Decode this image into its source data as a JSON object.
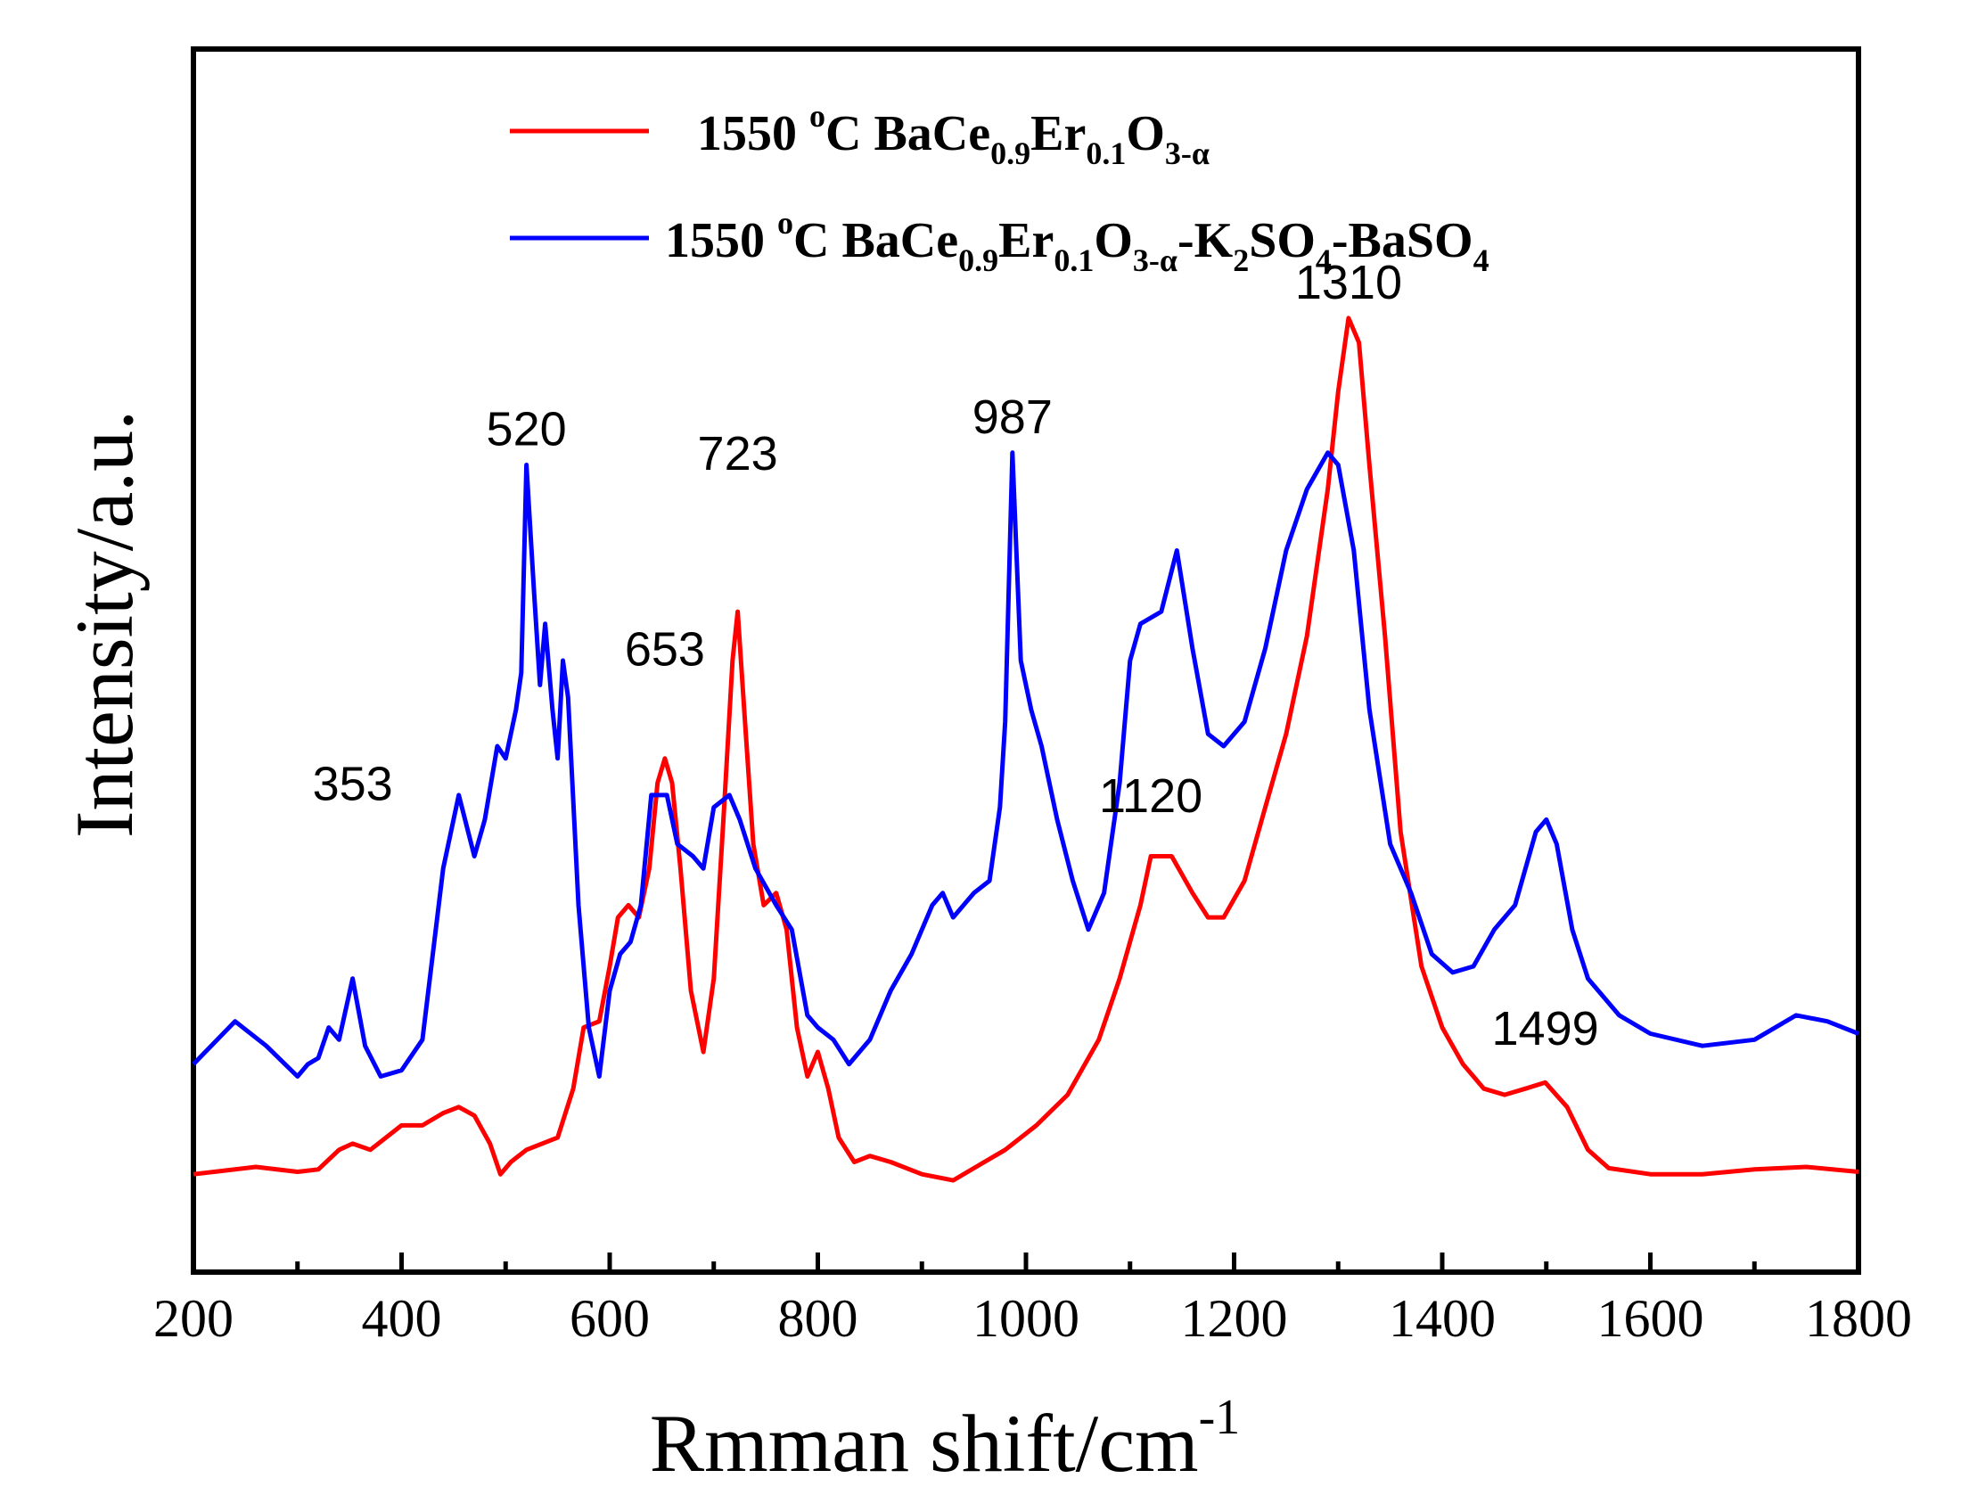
{
  "chart_data": {
    "type": "line",
    "title": "",
    "xlabel": "Rmman shift/cm",
    "xlabel_sup": "-1",
    "ylabel": "Intensity/a.u.",
    "xlim": [
      200,
      1800
    ],
    "ylim": [
      0,
      100
    ],
    "y_ticks_shown": false,
    "grid": false,
    "x_ticks": [
      200,
      400,
      600,
      800,
      1000,
      1200,
      1400,
      1600,
      1800
    ],
    "x_ticks_minor": [
      300,
      500,
      700,
      900,
      1100,
      1300,
      1500,
      1700
    ],
    "legend": {
      "position": "top-left",
      "entries": [
        {
          "series": 0,
          "prefix": "1550 ",
          "degree": "o",
          "parts": [
            {
              "t": "C BaCe",
              "s": "n"
            },
            {
              "t": "0.9",
              "s": "sub"
            },
            {
              "t": "Er",
              "s": "n"
            },
            {
              "t": "0.1",
              "s": "sub"
            },
            {
              "t": "O",
              "s": "n"
            },
            {
              "t": "3-α",
              "s": "sub"
            }
          ]
        },
        {
          "series": 1,
          "prefix": "1550 ",
          "degree": "o",
          "parts": [
            {
              "t": "C BaCe",
              "s": "n"
            },
            {
              "t": "0.9",
              "s": "sub"
            },
            {
              "t": "Er",
              "s": "n"
            },
            {
              "t": "0.1",
              "s": "sub"
            },
            {
              "t": "O",
              "s": "n"
            },
            {
              "t": "3-α",
              "s": "sub"
            },
            {
              "t": "-K",
              "s": "n"
            },
            {
              "t": "2",
              "s": "sub"
            },
            {
              "t": "SO",
              "s": "n"
            },
            {
              "t": "4",
              "s": "sub"
            },
            {
              "t": "-BaSO",
              "s": "n"
            },
            {
              "t": "4",
              "s": "sub"
            }
          ]
        }
      ]
    },
    "annotations": [
      {
        "text": "353",
        "x": 353,
        "y": 37
      },
      {
        "text": "520",
        "x": 520,
        "y": 66
      },
      {
        "text": "653",
        "x": 653,
        "y": 48
      },
      {
        "text": "723",
        "x": 723,
        "y": 64
      },
      {
        "text": "987",
        "x": 987,
        "y": 67
      },
      {
        "text": "1120",
        "x": 1120,
        "y": 36
      },
      {
        "text": "1310",
        "x": 1310,
        "y": 78
      },
      {
        "text": "1499",
        "x": 1499,
        "y": 17
      }
    ],
    "series": [
      {
        "name": "1550 oC BaCe0.9Er0.1O3-α",
        "color": "#ff0000",
        "x": [
          200,
          230,
          260,
          300,
          320,
          340,
          353,
          370,
          400,
          420,
          440,
          455,
          470,
          485,
          495,
          505,
          520,
          535,
          550,
          565,
          575,
          590,
          600,
          608,
          618,
          628,
          638,
          646,
          653,
          660,
          668,
          678,
          690,
          700,
          710,
          718,
          723,
          730,
          738,
          748,
          760,
          770,
          780,
          790,
          800,
          810,
          820,
          835,
          850,
          870,
          900,
          930,
          950,
          980,
          1010,
          1040,
          1070,
          1090,
          1110,
          1120,
          1140,
          1160,
          1175,
          1190,
          1210,
          1230,
          1250,
          1270,
          1290,
          1300,
          1310,
          1320,
          1330,
          1345,
          1360,
          1380,
          1400,
          1420,
          1440,
          1460,
          1480,
          1499,
          1520,
          1540,
          1560,
          1600,
          1650,
          1700,
          1750,
          1800
        ],
        "y": [
          8,
          8.3,
          8.6,
          8.2,
          8.4,
          10,
          10.5,
          10,
          12,
          12,
          13,
          13.5,
          12.8,
          10.5,
          8,
          9,
          10,
          10.5,
          11,
          15,
          20,
          20.5,
          25,
          29,
          30,
          29,
          33,
          40,
          42,
          40,
          33,
          23,
          18,
          24,
          38,
          50,
          54,
          45,
          35,
          30,
          31,
          28,
          20,
          16,
          18,
          15,
          11,
          9,
          9.5,
          9,
          8,
          7.5,
          8.5,
          10,
          12,
          14.5,
          19,
          24,
          30,
          34,
          34,
          31,
          29,
          29,
          32,
          38,
          44,
          52,
          64,
          72,
          78,
          76,
          66,
          52,
          36,
          25,
          20,
          17,
          15,
          14.5,
          15,
          15.5,
          13.5,
          10,
          8.5,
          8,
          8,
          8.4,
          8.6,
          8.2
        ]
      },
      {
        "name": "1550 oC BaCe0.9Er0.1O3-α-K2SO4-BaSO4",
        "color": "#0000ff",
        "x": [
          200,
          240,
          270,
          300,
          310,
          320,
          330,
          340,
          353,
          365,
          380,
          400,
          420,
          440,
          455,
          470,
          480,
          492,
          500,
          510,
          515,
          520,
          527,
          533,
          538,
          545,
          550,
          555,
          560,
          570,
          580,
          590,
          600,
          610,
          620,
          630,
          640,
          655,
          665,
          680,
          690,
          700,
          715,
          725,
          740,
          760,
          775,
          790,
          800,
          815,
          830,
          850,
          870,
          890,
          910,
          920,
          930,
          950,
          965,
          975,
          980,
          987,
          995,
          1005,
          1015,
          1030,
          1045,
          1060,
          1075,
          1090,
          1100,
          1110,
          1130,
          1145,
          1160,
          1175,
          1190,
          1210,
          1230,
          1250,
          1270,
          1290,
          1300,
          1315,
          1330,
          1350,
          1370,
          1390,
          1410,
          1430,
          1450,
          1470,
          1490,
          1500,
          1510,
          1525,
          1540,
          1570,
          1600,
          1650,
          1700,
          1740,
          1770,
          1800
        ],
        "y": [
          17,
          20.5,
          18.5,
          16,
          17,
          17.5,
          20,
          19,
          24,
          18.5,
          16,
          16.5,
          19,
          33,
          39,
          34,
          37,
          43,
          42,
          46,
          49,
          66,
          56,
          48,
          53,
          46,
          42,
          50,
          47,
          30,
          20,
          16,
          23,
          26,
          27,
          30,
          39,
          39,
          35,
          34,
          33,
          38,
          39,
          37,
          33,
          30,
          28,
          21,
          20,
          19,
          17,
          19,
          23,
          26,
          30,
          31,
          29,
          31,
          32,
          38,
          45,
          67,
          50,
          46,
          43,
          37,
          32,
          28,
          31,
          40,
          50,
          53,
          54,
          59,
          51,
          44,
          43,
          45,
          51,
          59,
          64,
          67,
          66,
          59,
          46,
          35,
          31,
          26,
          24.5,
          25,
          28,
          30,
          36,
          37,
          35,
          28,
          24,
          21,
          19.5,
          18.5,
          19,
          21,
          20.5,
          19.5
        ]
      }
    ]
  }
}
